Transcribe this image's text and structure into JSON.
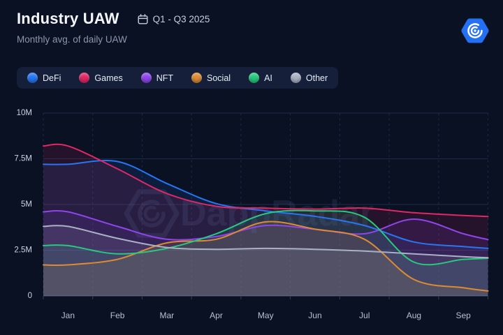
{
  "header": {
    "title": "Industry UAW",
    "date_range": "Q1 - Q3 2025",
    "subtitle": "Monthly avg. of daily UAW",
    "logo": "dappradar-logo"
  },
  "watermark": {
    "text": "DappRadar"
  },
  "colors": {
    "background": "#0a1123",
    "legend_pill": "#151f39",
    "grid": "#1d2b4a",
    "axis_line": "#313f5e",
    "y_tick_text": "#ccd4e0",
    "x_tick_text": "#b7c0d2",
    "logo_blue": "#2470f5",
    "watermark": "rgba(120,128,197,0.13)"
  },
  "chart_data": {
    "type": "area",
    "title": "Industry UAW",
    "subtitle": "Monthly avg. of daily UAW",
    "unit": "M (millions of unique active wallets)",
    "x_categories": [
      "Jan",
      "Feb",
      "Mar",
      "Apr",
      "May",
      "Jun",
      "Jul",
      "Aug",
      "Sep"
    ],
    "ylim": [
      0,
      10
    ],
    "ytick_labels": [
      "10M",
      "7.5M",
      "5M",
      "2.5M",
      "0"
    ],
    "ytick_values": [
      10,
      7.5,
      5,
      2.5,
      0
    ],
    "grid": {
      "horizontal": "solid",
      "vertical": "dashed"
    },
    "legend_position": "top-left",
    "series": [
      {
        "name": "DeFi",
        "color": "#2577f3",
        "values": [
          7.2,
          7.35,
          6.15,
          5.05,
          4.65,
          4.35,
          3.85,
          2.95,
          2.7
        ]
      },
      {
        "name": "Games",
        "color": "#e02864",
        "values": [
          8.2,
          6.95,
          5.6,
          4.9,
          4.8,
          4.75,
          4.8,
          4.55,
          4.4
        ]
      },
      {
        "name": "NFT",
        "color": "#9045ec",
        "values": [
          4.6,
          3.8,
          3.1,
          3.25,
          3.85,
          3.65,
          3.4,
          4.2,
          3.4
        ]
      },
      {
        "name": "Social",
        "color": "#dd8b33",
        "values": [
          1.7,
          2.0,
          2.9,
          3.1,
          4.05,
          3.65,
          3.1,
          0.9,
          0.45
        ]
      },
      {
        "name": "AI",
        "color": "#27c97e",
        "values": [
          2.75,
          2.3,
          2.6,
          3.4,
          4.5,
          4.65,
          4.3,
          1.85,
          2.0
        ]
      },
      {
        "name": "Other",
        "color": "#a9b2c4",
        "values": [
          3.8,
          3.15,
          2.65,
          2.55,
          2.6,
          2.55,
          2.45,
          2.3,
          2.15
        ]
      }
    ]
  }
}
